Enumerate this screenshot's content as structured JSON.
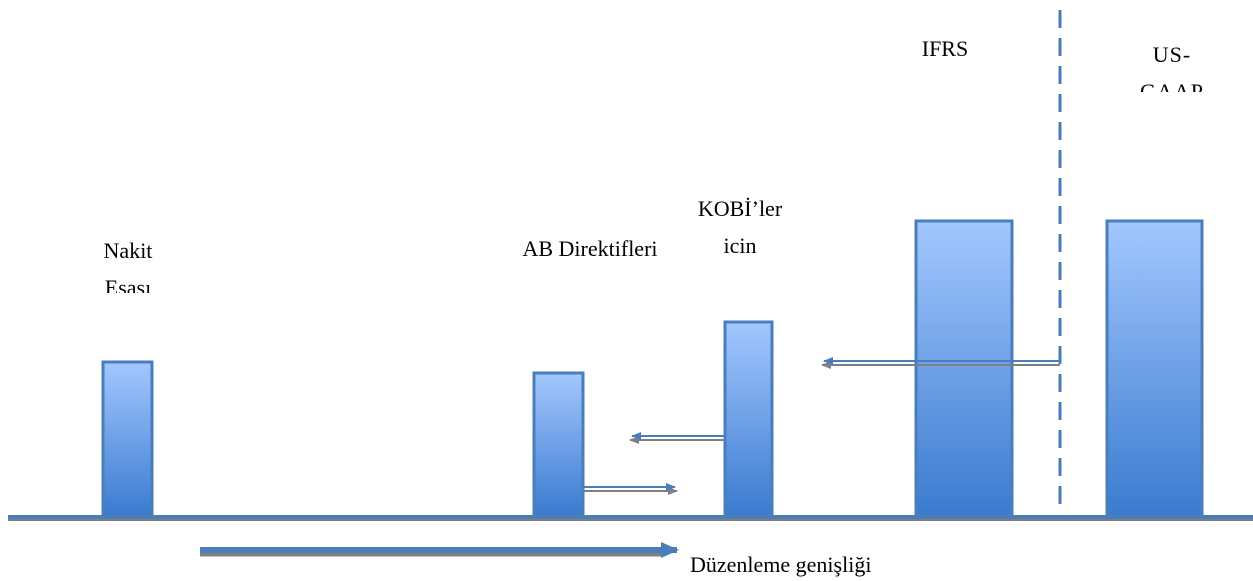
{
  "columns": [
    {
      "label": "Nakit Esası"
    },
    {
      "label": "AB Direktifleri"
    },
    {
      "label": "KOBİ’ler için"
    },
    {
      "label": "IFRS"
    },
    {
      "label": "US-GAAP"
    }
  ],
  "axis_label": "Düzenleme genişliği"
}
